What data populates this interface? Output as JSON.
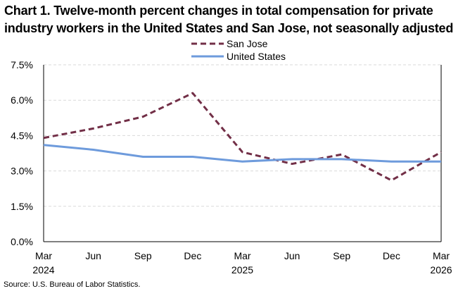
{
  "title_line1": "Chart 1. Twelve-month percent changes in total compensation for private",
  "title_line2": "industry workers in the United States and San Jose, not seasonally adjusted",
  "source": "Source: U.S. Bureau of Labor Statistics.",
  "chart_data": {
    "type": "line",
    "x_labels": [
      "Mar",
      "Jun",
      "Sep",
      "Dec",
      "Mar",
      "Jun",
      "Sep",
      "Dec",
      "Mar"
    ],
    "x_year_labels": [
      "2024",
      "",
      "",
      "",
      "2025",
      "",
      "",
      "",
      "2026"
    ],
    "y_ticks": [
      "0.0%",
      "1.5%",
      "3.0%",
      "4.5%",
      "6.0%",
      "7.5%"
    ],
    "ylim": [
      0,
      7.5
    ],
    "grid": true,
    "legend_position": "top-center",
    "series": [
      {
        "name": "San Jose",
        "color": "#722F47",
        "style": "dashed",
        "values": [
          4.4,
          4.8,
          5.3,
          6.3,
          3.8,
          3.3,
          3.7,
          2.6,
          3.8
        ]
      },
      {
        "name": "United States",
        "color": "#6E9BDC",
        "style": "solid",
        "values": [
          4.1,
          3.9,
          3.6,
          3.6,
          3.4,
          3.5,
          3.5,
          3.4,
          3.4
        ]
      }
    ]
  }
}
